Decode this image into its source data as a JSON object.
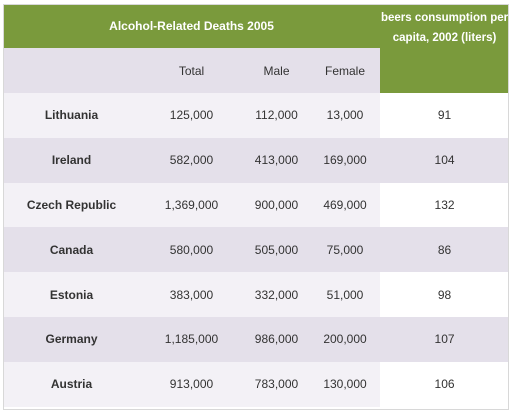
{
  "chart_data": {
    "type": "table",
    "title": "Alcohol-Related Deaths 2005",
    "side_header": "beers consumption per capita, 2002 (liters)",
    "columns": [
      "",
      "Total",
      "Male",
      "Female"
    ],
    "rows": [
      {
        "country": "Lithuania",
        "total": "125,000",
        "male": "112,000",
        "female": "13,000",
        "beer": "91"
      },
      {
        "country": "Ireland",
        "total": "582,000",
        "male": "413,000",
        "female": "169,000",
        "beer": "104"
      },
      {
        "country": "Czech Republic",
        "total": "1,369,000",
        "male": "900,000",
        "female": "469,000",
        "beer": "132"
      },
      {
        "country": "Canada",
        "total": "580,000",
        "male": "505,000",
        "female": "75,000",
        "beer": "86"
      },
      {
        "country": "Estonia",
        "total": "383,000",
        "male": "332,000",
        "female": "51,000",
        "beer": "98"
      },
      {
        "country": "Germany",
        "total": "1,185,000",
        "male": "986,000",
        "female": "200,000",
        "beer": "107"
      },
      {
        "country": "Austria",
        "total": "913,000",
        "male": "783,000",
        "female": "130,000",
        "beer": "106"
      }
    ]
  },
  "colors": {
    "header_green": "#7a9a3c",
    "band_light": "#f3f1f6",
    "band_dark": "#e4e0ea"
  }
}
